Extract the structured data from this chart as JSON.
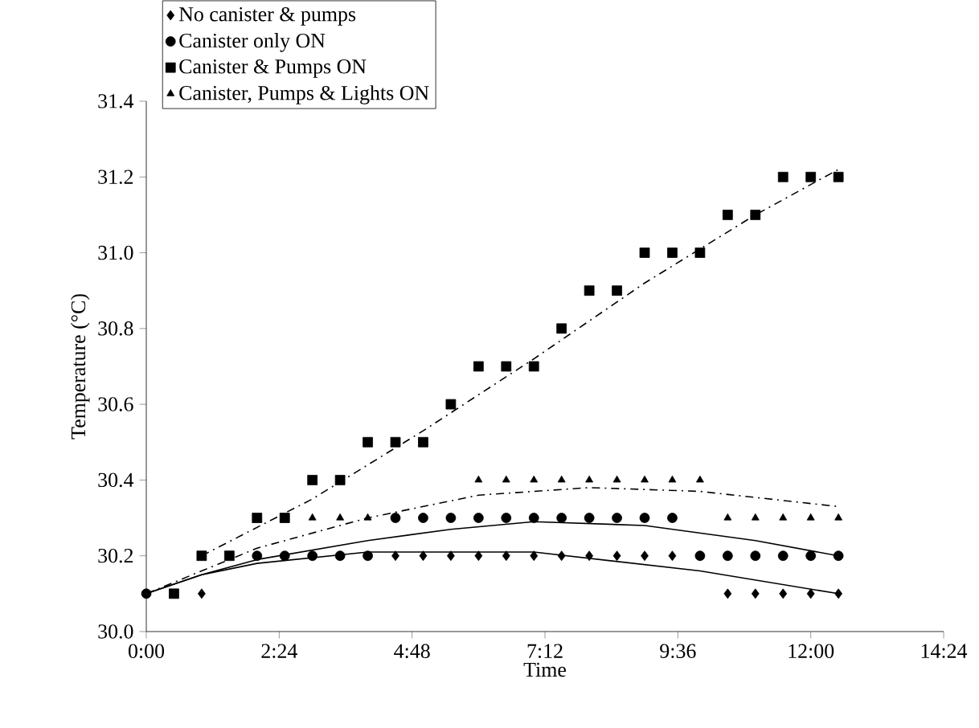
{
  "chart_data": {
    "type": "scatter",
    "xlabel": "Time",
    "ylabel": "Temperature (°C)",
    "x": [
      0,
      0.5,
      1,
      1.5,
      2,
      2.5,
      3,
      3.5,
      4,
      4.5,
      5,
      5.5,
      6,
      6.5,
      7,
      7.5,
      8,
      8.5,
      9,
      9.5,
      10,
      10.5,
      11,
      11.5,
      12,
      12.5
    ],
    "series": [
      {
        "name": "No canister & pumps",
        "color": "#000000",
        "marker": "diamond",
        "values": [
          null,
          null,
          30.1,
          null,
          null,
          null,
          null,
          null,
          null,
          30.2,
          30.2,
          30.2,
          30.2,
          30.2,
          30.2,
          30.2,
          30.2,
          30.2,
          30.2,
          30.2,
          null,
          30.1,
          30.1,
          30.1,
          30.1,
          30.1
        ]
      },
      {
        "name": "Canister only ON",
        "color": "#000000",
        "marker": "circle",
        "values": [
          30.1,
          null,
          null,
          null,
          30.2,
          30.2,
          30.2,
          30.2,
          30.2,
          30.3,
          30.3,
          30.3,
          30.3,
          30.3,
          30.3,
          30.3,
          30.3,
          30.3,
          30.3,
          30.3,
          30.2,
          30.2,
          30.2,
          30.2,
          30.2,
          30.2
        ]
      },
      {
        "name": "Canister & Pumps ON",
        "color": "#000000",
        "marker": "square",
        "values": [
          null,
          30.1,
          30.2,
          30.2,
          30.3,
          30.3,
          30.4,
          30.4,
          30.5,
          30.5,
          30.5,
          30.6,
          30.7,
          30.7,
          30.7,
          30.8,
          30.9,
          30.9,
          31.0,
          31.0,
          31.0,
          31.1,
          31.1,
          31.2,
          31.2,
          31.2
        ]
      },
      {
        "name": "Canister, Pumps & Lights ON",
        "color": "#000000",
        "marker": "triangle",
        "values": [
          null,
          null,
          null,
          null,
          null,
          null,
          30.3,
          30.3,
          30.3,
          null,
          null,
          null,
          30.4,
          30.4,
          30.4,
          30.4,
          30.4,
          30.4,
          30.4,
          30.4,
          30.4,
          30.3,
          30.3,
          30.3,
          30.3,
          30.3
        ]
      },
      {
        "type": "line",
        "color": "#000000",
        "line_style": "solid",
        "x": [
          0,
          1,
          2,
          4,
          7,
          10,
          12.5
        ],
        "values": [
          30.1,
          30.15,
          30.18,
          30.21,
          30.21,
          30.16,
          30.1
        ]
      },
      {
        "type": "line",
        "color": "#000000",
        "line_style": "solid",
        "x": [
          0,
          1,
          2,
          4,
          5.5,
          7,
          9,
          11,
          12.5
        ],
        "values": [
          30.1,
          30.15,
          30.19,
          30.24,
          30.27,
          30.29,
          30.28,
          30.24,
          30.2
        ]
      },
      {
        "type": "line",
        "color": "#000000",
        "line_style": "dashed",
        "x": [
          1,
          3,
          5,
          7,
          9,
          11,
          12.5
        ],
        "values": [
          30.2,
          30.35,
          30.53,
          30.72,
          30.92,
          31.1,
          31.22
        ]
      },
      {
        "type": "line",
        "color": "#000000",
        "line_style": "dashed",
        "x": [
          0,
          1,
          2,
          4,
          6,
          8,
          10,
          12.5
        ],
        "values": [
          30.1,
          30.16,
          30.22,
          30.3,
          30.36,
          30.38,
          30.37,
          30.33
        ]
      }
    ],
    "xlim": [
      0,
      14.4
    ],
    "ylim": [
      30.0,
      31.4
    ],
    "xticks": [
      {
        "value": 0,
        "label": "0:00"
      },
      {
        "value": 2.4,
        "label": "2:24"
      },
      {
        "value": 4.8,
        "label": "4:48"
      },
      {
        "value": 7.2,
        "label": "7:12"
      },
      {
        "value": 9.6,
        "label": "9:36"
      },
      {
        "value": 12,
        "label": "12:00"
      },
      {
        "value": 14.4,
        "label": "14:24"
      }
    ],
    "yticks": [
      {
        "value": 30.0,
        "label": "30.0"
      },
      30.2,
      30.4,
      30.6,
      30.8,
      {
        "value": 31.0,
        "label": "31.0"
      },
      31.2,
      31.4
    ],
    "grid": false,
    "legend": "top left"
  }
}
